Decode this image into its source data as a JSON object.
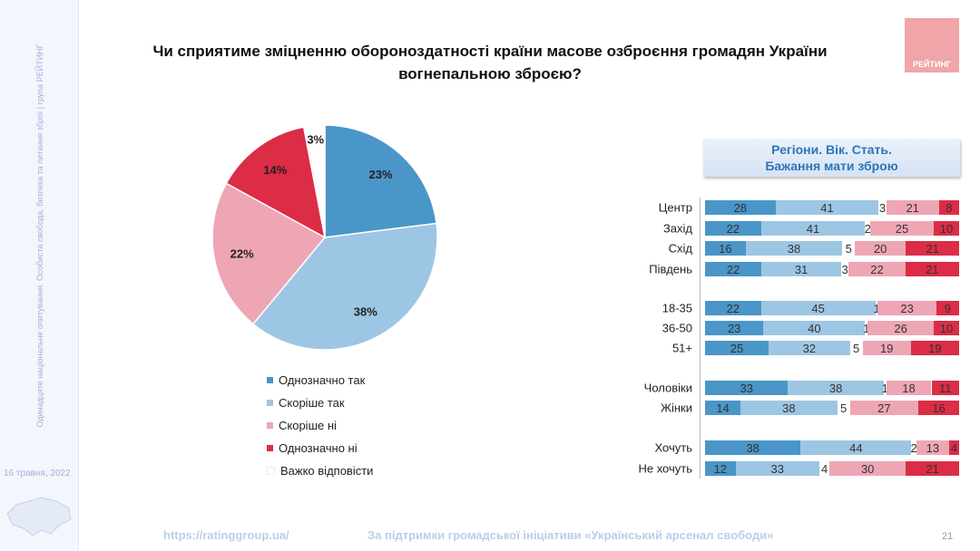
{
  "sidebar": {
    "text": "Одинадцяте національне опитування. Особиста свобода, безпека та питання зброї | група РЕЙТИНГ",
    "date": "16 травня, 2022"
  },
  "title": {
    "line1": "Чи сприятиме зміцненню обороноздатності країни масове озброєння громадян України",
    "line2": "вогнепальною зброєю?"
  },
  "logo": {
    "text": "РЕЙТИНГ"
  },
  "colors": {
    "def_yes": "#4a96c8",
    "rather_yes": "#9dc6e4",
    "hard": "#ffffff",
    "rather_no": "#eea6b5",
    "def_no": "#dc2c46"
  },
  "chart_data": [
    {
      "type": "pie",
      "slices": [
        {
          "label": "Однозначно так",
          "value": 23,
          "display": "23%"
        },
        {
          "label": "Скоріше так",
          "value": 38,
          "display": "38%"
        },
        {
          "label": "Скоріше ні",
          "value": 22,
          "display": "22%"
        },
        {
          "label": "Однозначно ні",
          "value": 14,
          "display": "14%"
        },
        {
          "label": "Важко відповісти",
          "value": 3,
          "display": "3%"
        }
      ]
    },
    {
      "type": "bar",
      "stacked": true,
      "orientation": "horizontal",
      "title": "Регіони. Вік. Стать.",
      "subtitle": "Бажання мати зброю",
      "series_order": [
        "Однозначно так",
        "Скоріше так",
        "Важко відповісти",
        "Скоріше ні",
        "Однозначно ні"
      ],
      "groups": [
        {
          "rows": [
            {
              "label": "Центр",
              "values": [
                28,
                41,
                3,
                21,
                8
              ]
            },
            {
              "label": "Захід",
              "values": [
                22,
                41,
                2,
                25,
                10
              ]
            },
            {
              "label": "Схід",
              "values": [
                16,
                38,
                5,
                20,
                21
              ]
            },
            {
              "label": "Південь",
              "values": [
                22,
                31,
                3,
                22,
                21
              ]
            }
          ]
        },
        {
          "rows": [
            {
              "label": "18-35",
              "values": [
                22,
                45,
                1,
                23,
                9
              ]
            },
            {
              "label": "36-50",
              "values": [
                23,
                40,
                1,
                26,
                10
              ]
            },
            {
              "label": "51+",
              "values": [
                25,
                32,
                5,
                19,
                19
              ]
            }
          ]
        },
        {
          "rows": [
            {
              "label": "Чоловіки",
              "values": [
                33,
                38,
                1,
                18,
                11
              ]
            },
            {
              "label": "Жінки",
              "values": [
                14,
                38,
                5,
                27,
                16
              ]
            }
          ]
        },
        {
          "rows": [
            {
              "label": "Хочуть",
              "values": [
                38,
                44,
                2,
                13,
                4
              ]
            },
            {
              "label": "Не хочуть",
              "values": [
                12,
                33,
                4,
                30,
                21
              ]
            }
          ]
        }
      ]
    }
  ],
  "footer": {
    "url": "https://ratinggroup.ua/",
    "support": "За підтримки  громадської ініціативи «Український арсенал свободи»",
    "page": "21"
  }
}
